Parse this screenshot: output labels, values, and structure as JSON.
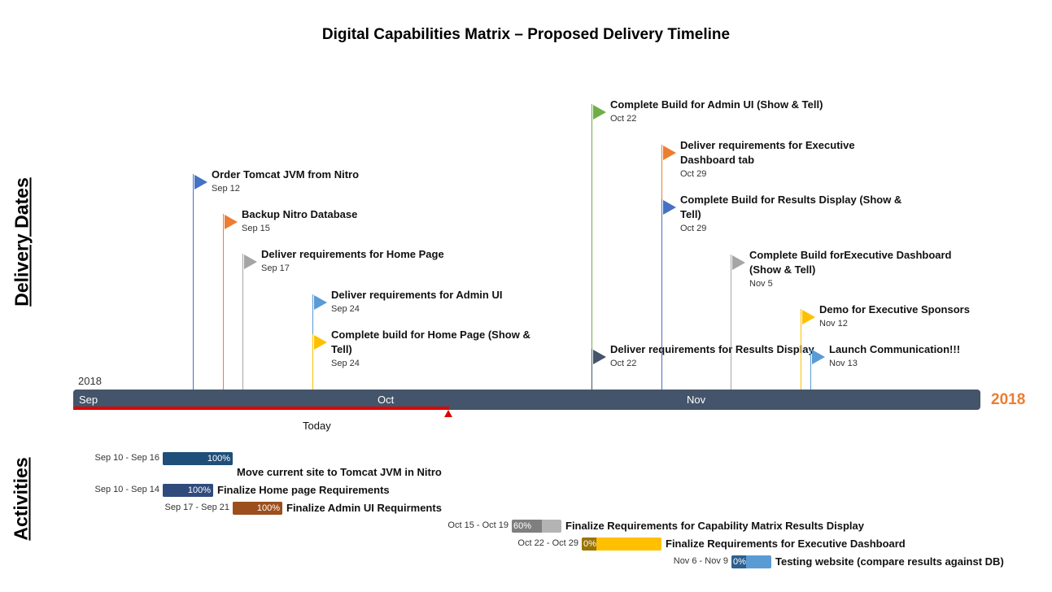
{
  "title": "Digital Capabilities Matrix – Proposed Delivery Timeline",
  "side_labels": {
    "deliveries": "Delivery Dates",
    "activities": "Activities"
  },
  "axis": {
    "year_small": "2018",
    "year_big": "2018",
    "months": [
      "Sep",
      "Oct",
      "Nov"
    ],
    "today_label": "Today",
    "bar_color": "#44546a",
    "today_color": "#e00000",
    "year_color": "#ed7d31"
  },
  "chart_data": {
    "type": "timeline",
    "title": "Digital Capabilities Matrix – Proposed Delivery Timeline",
    "axis_range": [
      "2018-09-01",
      "2018-11-30"
    ],
    "today": "2018-10-06",
    "milestones": [
      {
        "title_lines": [
          "Order Tomcat JVM from Nitro"
        ],
        "date": "Sep 12",
        "date_iso": "2018-09-12",
        "color": "#4472c4"
      },
      {
        "title_lines": [
          "Backup Nitro Database"
        ],
        "date": "Sep 15",
        "date_iso": "2018-09-15",
        "color": "#ed7d31"
      },
      {
        "title_lines": [
          "Deliver requirements for Home Page"
        ],
        "date": "Sep 17",
        "date_iso": "2018-09-17",
        "color": "#a5a5a5"
      },
      {
        "title_lines": [
          "Deliver requirements for Admin UI"
        ],
        "date": "Sep 24",
        "date_iso": "2018-09-24",
        "color": "#5b9bd5"
      },
      {
        "title_lines": [
          "Complete build for Home Page (Show &",
          "Tell)"
        ],
        "date": "Sep 24",
        "date_iso": "2018-09-24",
        "color": "#ffc000"
      },
      {
        "title_lines": [
          "Complete Build for Admin UI (Show & Tell)"
        ],
        "date": "Oct 22",
        "date_iso": "2018-10-22",
        "color": "#70ad47"
      },
      {
        "title_lines": [
          "Deliver requirements for Results Display"
        ],
        "date": "Oct 22",
        "date_iso": "2018-10-22",
        "color": "#44546a"
      },
      {
        "title_lines": [
          "Deliver requirements for Executive",
          "Dashboard tab"
        ],
        "date": "Oct 29",
        "date_iso": "2018-10-29",
        "color": "#ed7d31"
      },
      {
        "title_lines": [
          "Complete Build for Results Display (Show &",
          "Tell)"
        ],
        "date": "Oct 29",
        "date_iso": "2018-10-29",
        "color": "#4472c4"
      },
      {
        "title_lines": [
          "Complete Build forExecutive Dashboard",
          "(Show & Tell)"
        ],
        "date": "Nov 5",
        "date_iso": "2018-11-05",
        "color": "#a5a5a5"
      },
      {
        "title_lines": [
          "Demo for Executive Sponsors"
        ],
        "date": "Nov 12",
        "date_iso": "2018-11-12",
        "color": "#ffc000"
      },
      {
        "title_lines": [
          "Launch Communication!!!"
        ],
        "date": "Nov 13",
        "date_iso": "2018-11-13",
        "color": "#5b9bd5"
      }
    ],
    "activities": [
      {
        "label": "Move current site to Tomcat JVM in Nitro",
        "dates": "Sep 10 - Sep 16",
        "start": "2018-09-10",
        "end": "2018-09-16",
        "percent": 100,
        "pct_label": "100%",
        "color": "#1f4e79",
        "rest_color": "#1f4e79"
      },
      {
        "label": "Finalize Home page Requirements",
        "dates": "Sep 10 - Sep 14",
        "start": "2018-09-10",
        "end": "2018-09-14",
        "percent": 100,
        "pct_label": "100%",
        "color": "#2f4b7c",
        "rest_color": "#2f4b7c"
      },
      {
        "label": "Finalize Admin UI Requirments",
        "dates": "Sep 17 - Sep 21",
        "start": "2018-09-17",
        "end": "2018-09-21",
        "percent": 100,
        "pct_label": "100%",
        "color": "#9c4f1c",
        "rest_color": "#9c4f1c"
      },
      {
        "label": "Finalize Requirements for Capability Matrix Results Display",
        "dates": "Oct 15 - Oct 19",
        "start": "2018-10-15",
        "end": "2018-10-19",
        "percent": 60,
        "pct_label": "60%",
        "color": "#7f7f7f",
        "rest_color": "#b4b4b4"
      },
      {
        "label": "Finalize Requirements for Executive Dashboard",
        "dates": "Oct 22 - Oct 29",
        "start": "2018-10-22",
        "end": "2018-10-29",
        "percent": 0,
        "pct_label": "0%",
        "color": "#9a7300",
        "rest_color": "#ffc000"
      },
      {
        "label": "Testing website (compare results against DB)",
        "dates": "Nov 6 - Nov 9",
        "start": "2018-11-06",
        "end": "2018-11-09",
        "percent": 0,
        "pct_label": "0%",
        "color": "#2e5f8f",
        "rest_color": "#5b9bd5"
      }
    ]
  }
}
